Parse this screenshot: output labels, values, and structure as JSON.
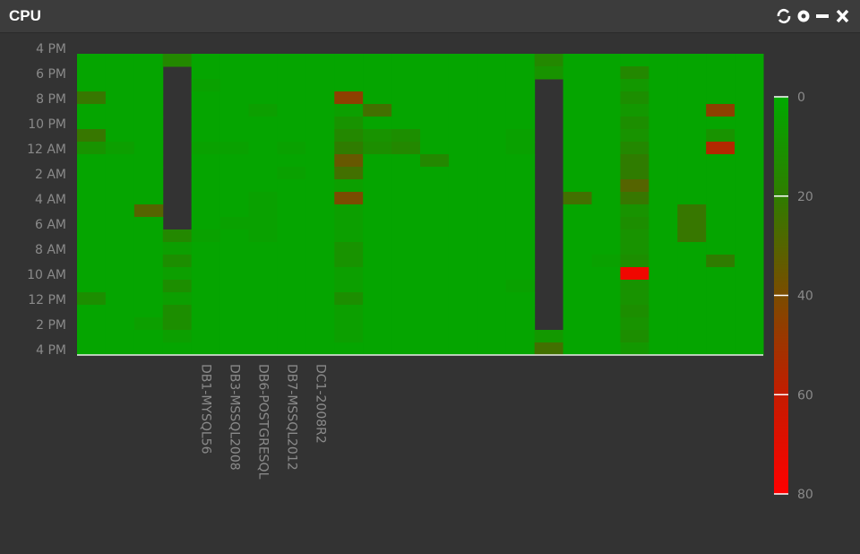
{
  "title": "CPU",
  "chart_data": {
    "type": "heatmap",
    "categories": [
      null,
      null,
      null,
      null,
      "DB1-MYSQL56",
      "DB3-MSSQL2008",
      "DB6-POSTGRESQL",
      "DB7-MSSQL2012",
      "DC1-2008R2",
      null,
      null,
      null,
      null,
      null,
      null,
      null,
      null,
      null,
      null,
      null,
      null,
      null,
      null,
      null
    ],
    "y_labels": [
      "4 PM",
      "6 PM",
      "8 PM",
      "10 PM",
      "12 AM",
      "2 AM",
      "4 AM",
      "6 AM",
      "8 AM",
      "10 AM",
      "12 PM",
      "2 PM",
      "4 PM"
    ],
    "z": [
      [
        2,
        2,
        2,
        22,
        2,
        2,
        22,
        10,
        2,
        2,
        2,
        2,
        2,
        2,
        2,
        2,
        2,
        2,
        2,
        12,
        2,
        2,
        2,
        2
      ],
      [
        2,
        2,
        2,
        2,
        2,
        2,
        2,
        5,
        2,
        2,
        2,
        2,
        2,
        2,
        2,
        2,
        2,
        2,
        2,
        2,
        2,
        2,
        2,
        2
      ],
      [
        2,
        2,
        2,
        2,
        2,
        2,
        2,
        2,
        2,
        2,
        2,
        2,
        30,
        2,
        2,
        2,
        2,
        2,
        2,
        2,
        2,
        5,
        2,
        2
      ],
      [
        15,
        null,
        null,
        null,
        null,
        null,
        null,
        null,
        null,
        null,
        null,
        null,
        null,
        null,
        15,
        5,
        12,
        5,
        12,
        5,
        12,
        12,
        5,
        2
      ],
      [
        2,
        2,
        4,
        2,
        2,
        2,
        2,
        4,
        2,
        2,
        2,
        2,
        2,
        2,
        4,
        2,
        2,
        2,
        2,
        2,
        2,
        2,
        2,
        2
      ],
      [
        2,
        2,
        2,
        2,
        2,
        2,
        2,
        4,
        2,
        2,
        2,
        2,
        2,
        4,
        2,
        2,
        2,
        2,
        2,
        2,
        2,
        2,
        2,
        2
      ],
      [
        2,
        2,
        2,
        2,
        5,
        2,
        2,
        2,
        2,
        2,
        2,
        4,
        4,
        4,
        4,
        2,
        2,
        2,
        2,
        2,
        2,
        2,
        2,
        2
      ],
      [
        2,
        2,
        2,
        2,
        2,
        2,
        2,
        4,
        2,
        4,
        2,
        2,
        2,
        2,
        2,
        2,
        2,
        2,
        2,
        2,
        2,
        2,
        2,
        2
      ],
      [
        2,
        2,
        2,
        2,
        2,
        2,
        2,
        2,
        2,
        2,
        2,
        2,
        2,
        2,
        2,
        2,
        2,
        2,
        2,
        2,
        2,
        2,
        2,
        2
      ],
      [
        2,
        2,
        2,
        45,
        5,
        10,
        15,
        20,
        35,
        25,
        5,
        40,
        5,
        5,
        5,
        10,
        10,
        5,
        5,
        12,
        5,
        5,
        5,
        2
      ],
      [
        2,
        2,
        2,
        2,
        25,
        2,
        10,
        12,
        2,
        2,
        2,
        2,
        2,
        2,
        2,
        2,
        2,
        2,
        2,
        2,
        2,
        2,
        2,
        2
      ],
      [
        2,
        2,
        2,
        2,
        2,
        2,
        12,
        15,
        2,
        2,
        2,
        2,
        2,
        2,
        2,
        2,
        2,
        2,
        2,
        2,
        2,
        2,
        2,
        2
      ],
      [
        2,
        2,
        2,
        2,
        2,
        2,
        2,
        2,
        15,
        2,
        2,
        2,
        2,
        2,
        2,
        2,
        2,
        2,
        2,
        2,
        2,
        2,
        2,
        2
      ],
      [
        2,
        2,
        2,
        2,
        2,
        2,
        2,
        2,
        2,
        2,
        2,
        2,
        2,
        2,
        2,
        2,
        2,
        2,
        2,
        2,
        2,
        2,
        2,
        2
      ],
      [
        2,
        2,
        2,
        2,
        2,
        2,
        2,
        2,
        2,
        2,
        2,
        2,
        2,
        2,
        2,
        2,
        2,
        2,
        2,
        2,
        2,
        2,
        2,
        2
      ],
      [
        2,
        2,
        2,
        2,
        2,
        2,
        4,
        4,
        2,
        2,
        2,
        2,
        2,
        2,
        2,
        2,
        2,
        2,
        4,
        2,
        2,
        2,
        2,
        2
      ],
      [
        15,
        10,
        null,
        null,
        null,
        null,
        null,
        null,
        null,
        null,
        null,
        null,
        null,
        null,
        null,
        null,
        null,
        null,
        null,
        null,
        null,
        null,
        8,
        25
      ],
      [
        2,
        2,
        2,
        2,
        2,
        2,
        2,
        2,
        2,
        2,
        2,
        25,
        2,
        2,
        2,
        2,
        2,
        2,
        2,
        2,
        2,
        2,
        2,
        2
      ],
      [
        2,
        2,
        2,
        2,
        2,
        2,
        2,
        2,
        2,
        2,
        2,
        2,
        2,
        2,
        2,
        2,
        4,
        2,
        2,
        2,
        2,
        2,
        2,
        2
      ],
      [
        2,
        15,
        8,
        12,
        8,
        12,
        10,
        15,
        20,
        20,
        30,
        22,
        10,
        12,
        10,
        10,
        12,
        75,
        10,
        10,
        12,
        10,
        12,
        8
      ],
      [
        2,
        2,
        2,
        2,
        2,
        2,
        2,
        2,
        2,
        2,
        2,
        2,
        2,
        2,
        2,
        2,
        2,
        2,
        2,
        2,
        2,
        2,
        2,
        2
      ],
      [
        2,
        2,
        2,
        2,
        2,
        2,
        2,
        2,
        2,
        2,
        2,
        2,
        22,
        22,
        22,
        2,
        2,
        2,
        2,
        2,
        2,
        2,
        2,
        2
      ],
      [
        2,
        2,
        2,
        2,
        45,
        2,
        10,
        55,
        2,
        2,
        2,
        2,
        2,
        2,
        2,
        2,
        20,
        2,
        2,
        2,
        2,
        2,
        2,
        2
      ],
      [
        2,
        2,
        2,
        2,
        2,
        2,
        2,
        2,
        2,
        2,
        2,
        2,
        2,
        2,
        2,
        2,
        2,
        2,
        2,
        2,
        2,
        2,
        2,
        2
      ]
    ],
    "zlim": [
      0,
      80
    ],
    "zticks": [
      0,
      20,
      40,
      60,
      80
    ],
    "colorscale": [
      [
        0,
        "#00aa00"
      ],
      [
        20,
        "#2f7c00"
      ],
      [
        40,
        "#7a4c00"
      ],
      [
        60,
        "#c41c00"
      ],
      [
        80,
        "#ff0000"
      ]
    ],
    "missing_color": "#333333"
  }
}
